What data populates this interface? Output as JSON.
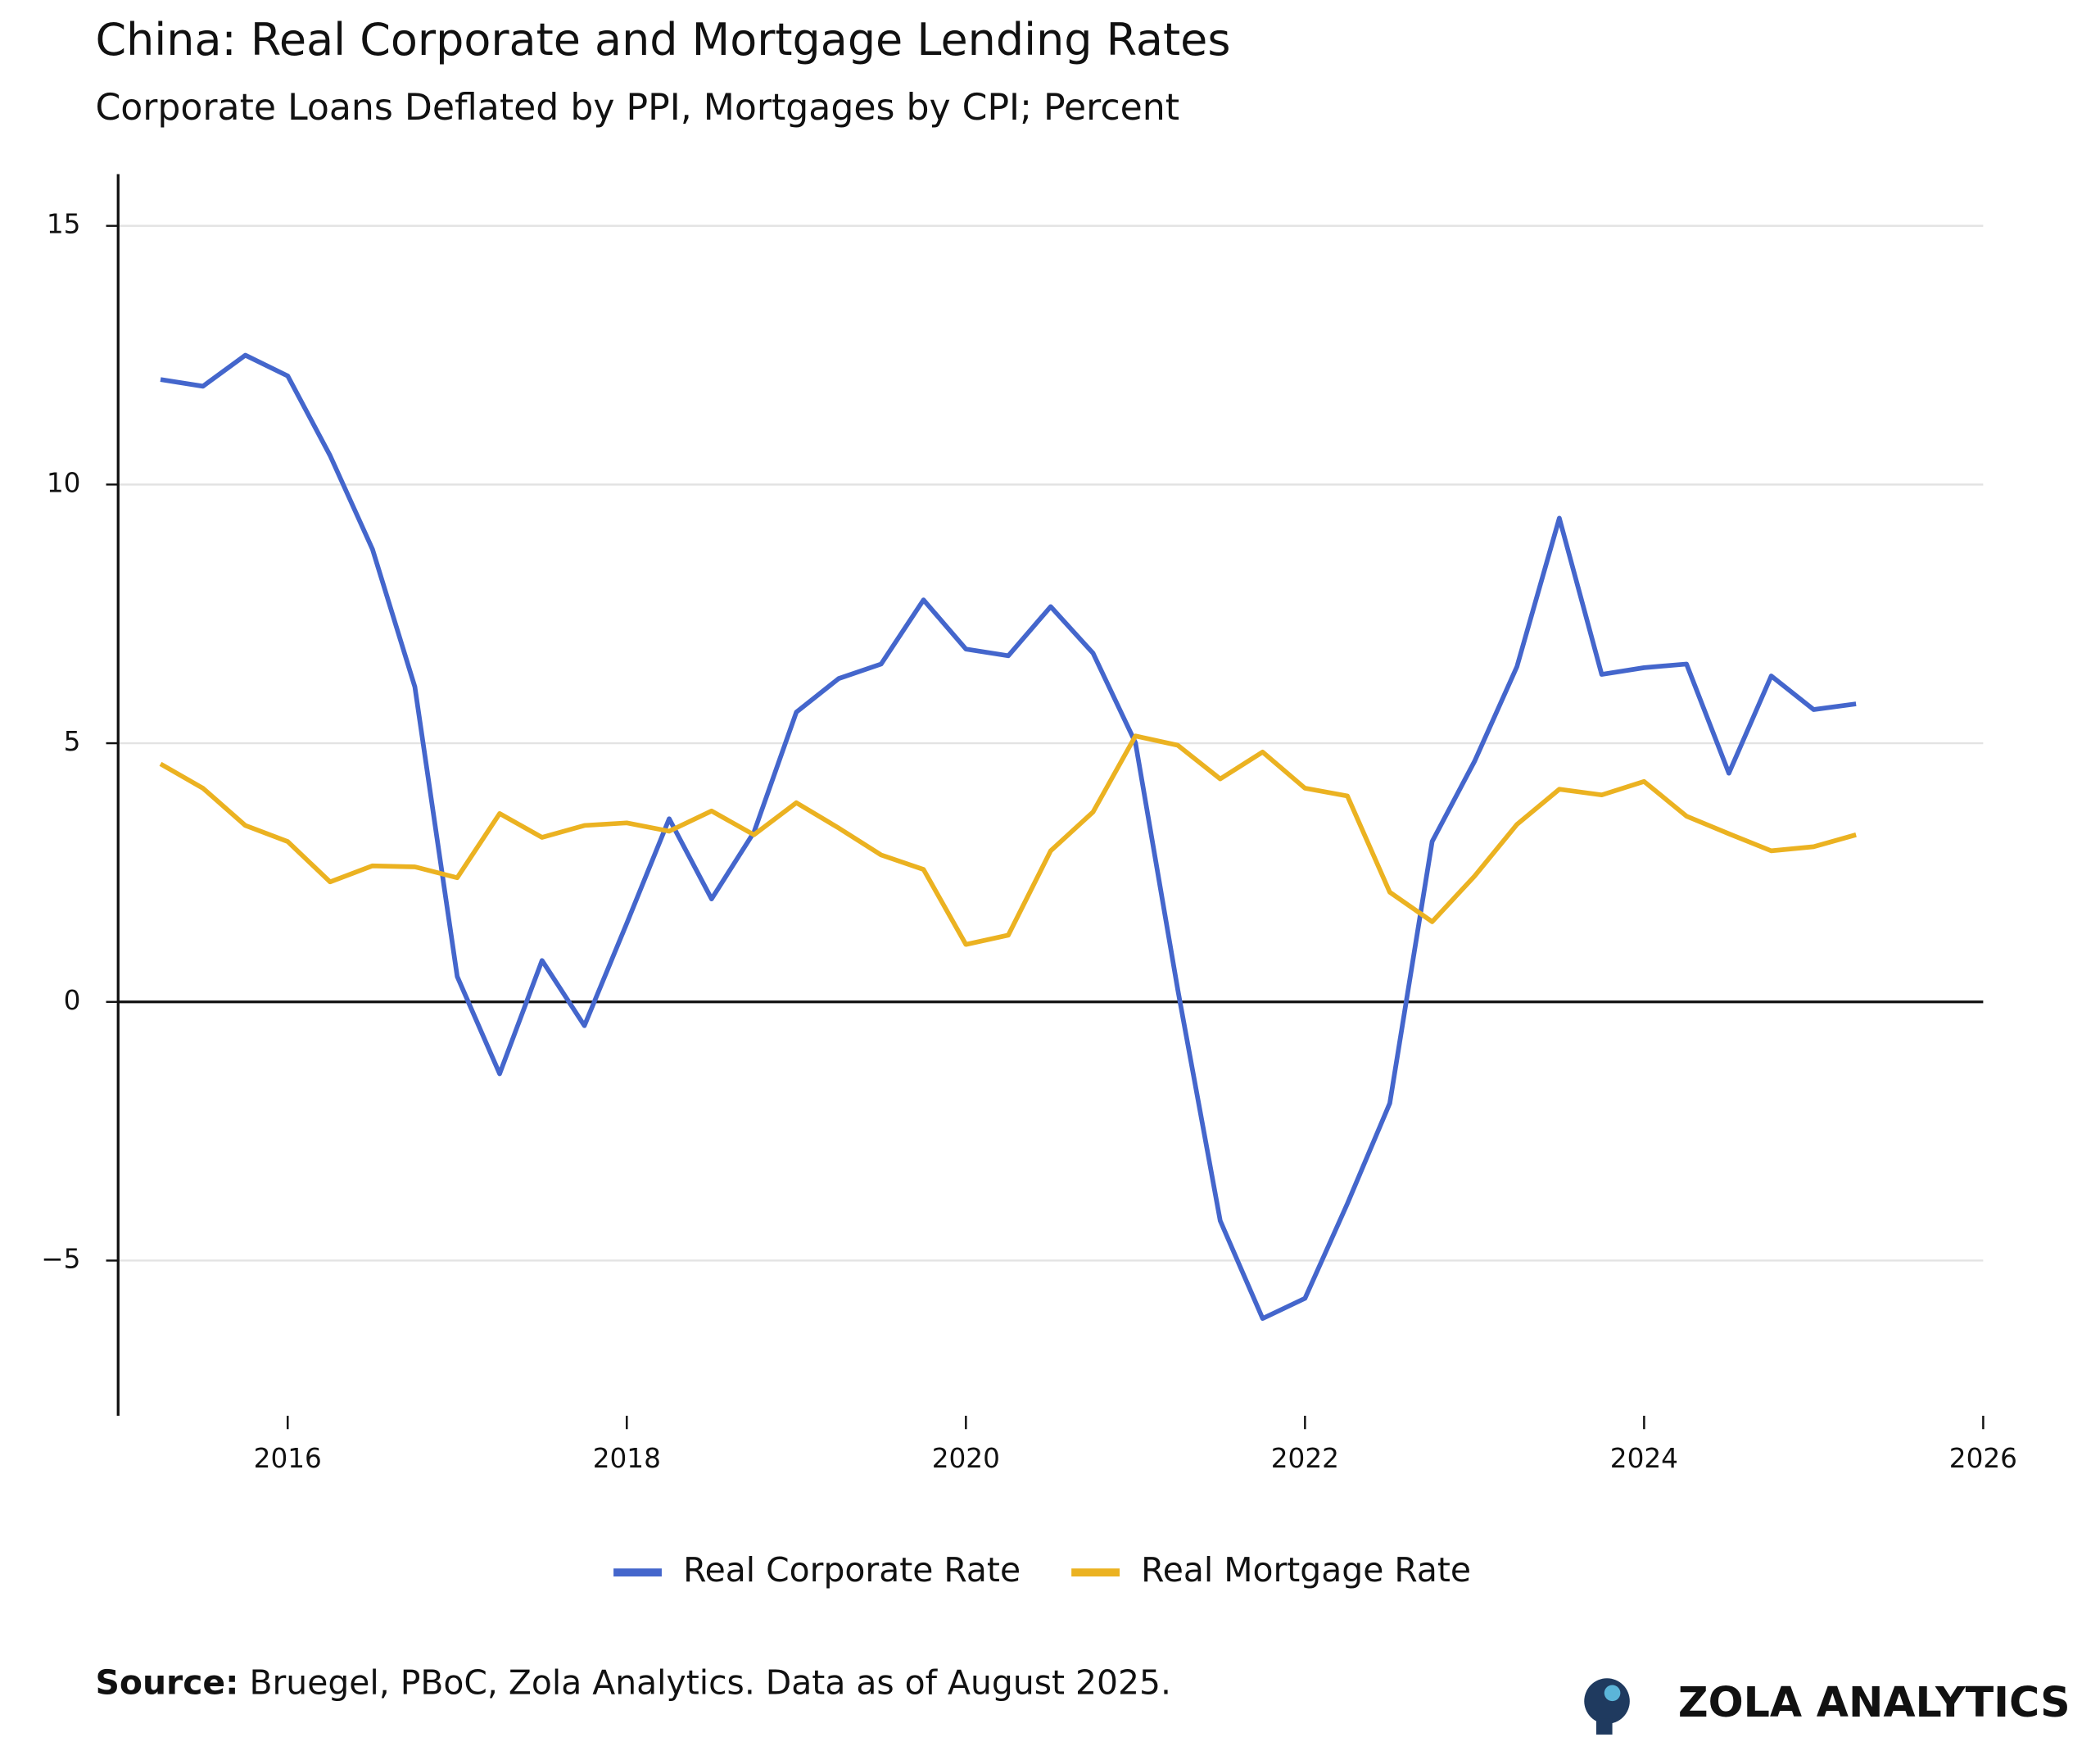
{
  "chart_data": {
    "type": "line",
    "title": "China: Real Corporate and Mortgage Lending Rates",
    "subtitle": "Corporate Loans Deflated by PPI, Mortgages by CPI; Percent",
    "x": [
      2015.25,
      2015.5,
      2015.75,
      2016,
      2016.25,
      2016.5,
      2016.75,
      2017,
      2017.25,
      2017.5,
      2017.75,
      2018,
      2018.25,
      2018.5,
      2018.75,
      2019,
      2019.25,
      2019.5,
      2019.75,
      2020,
      2020.25,
      2020.5,
      2020.75,
      2021,
      2021.25,
      2021.5,
      2021.75,
      2022,
      2022.25,
      2022.5,
      2022.75,
      2023,
      2023.25,
      2023.5,
      2023.75,
      2024,
      2024.25,
      2024.5,
      2024.75,
      2025,
      2025.25
    ],
    "series": [
      {
        "name": "Real Corporate Rate",
        "color": "#4466cc",
        "values": [
          12.03,
          11.9,
          12.5,
          12.1,
          10.56,
          8.75,
          6.09,
          0.49,
          -1.39,
          0.8,
          -0.46,
          1.52,
          3.54,
          1.99,
          3.28,
          5.6,
          6.25,
          6.53,
          7.77,
          6.82,
          6.69,
          7.64,
          6.74,
          5.01,
          0.23,
          -4.23,
          -6.12,
          -5.73,
          -3.9,
          -1.96,
          3.1,
          4.65,
          6.48,
          9.35,
          6.33,
          6.46,
          6.53,
          4.42,
          6.3,
          5.65,
          5.76
        ]
      },
      {
        "name": "Real Mortgage Rate",
        "color": "#ebb221",
        "values": [
          4.6,
          4.13,
          3.41,
          3.1,
          2.32,
          2.63,
          2.61,
          2.4,
          3.64,
          3.18,
          3.41,
          3.46,
          3.3,
          3.69,
          3.23,
          3.85,
          3.36,
          2.84,
          2.56,
          1.11,
          1.29,
          2.92,
          3.67,
          5.14,
          4.96,
          4.31,
          4.83,
          4.13,
          3.98,
          2.12,
          1.55,
          2.43,
          3.43,
          4.11,
          4.0,
          4.26,
          3.59,
          3.25,
          2.92,
          3.0,
          3.23
        ]
      }
    ],
    "xlim": [
      2015,
      2026
    ],
    "xticks": [
      2016,
      2018,
      2020,
      2022,
      2024,
      2026
    ],
    "ylim": [
      -8,
      16
    ],
    "yticks": [
      {
        "value": -5,
        "label": "−5"
      },
      0,
      5,
      10,
      15
    ],
    "grid": true,
    "legend": "bottom"
  },
  "source": {
    "label": "Source:",
    "text": "Bruegel, PBoC, Zola Analytics. Data as of August 2025."
  },
  "brand": "ZOLA ANALYTICS"
}
